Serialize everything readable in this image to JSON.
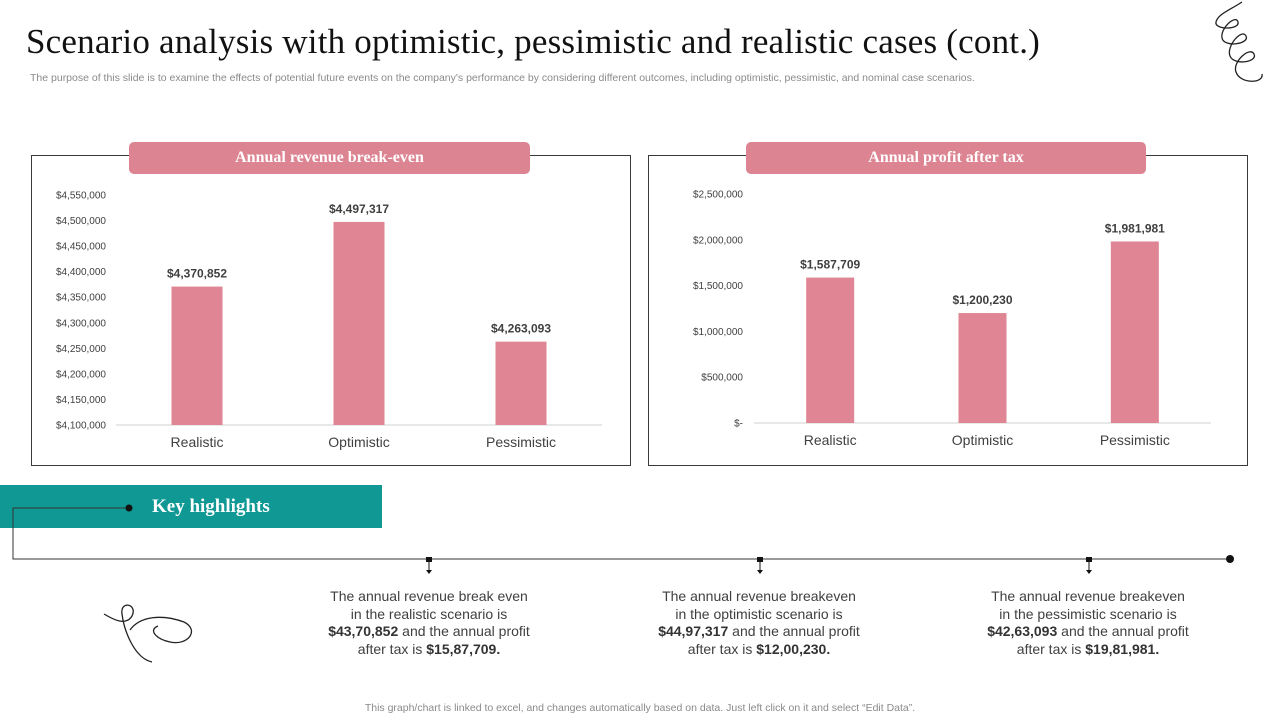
{
  "title": "Scenario analysis with optimistic, pessimistic and realistic cases (cont.)",
  "subtitle": "The purpose of this slide is to examine the effects of potential future events on the company's performance by considering different outcomes, including optimistic, pessimistic, and nominal case scenarios.",
  "colors": {
    "bar": "#df8593",
    "header": "#dd8492",
    "teal": "#0f9894"
  },
  "chart_data": [
    {
      "type": "bar",
      "title": "Annual revenue break-even",
      "categories": [
        "Realistic",
        "Optimistic",
        "Pessimistic"
      ],
      "values": [
        4370852,
        4497317,
        4263093
      ],
      "value_labels": [
        "$4,370,852",
        "$4,497,317",
        "$4,263,093"
      ],
      "ylim": [
        4100000,
        4550000
      ],
      "yticks": [
        4100000,
        4150000,
        4200000,
        4250000,
        4300000,
        4350000,
        4400000,
        4450000,
        4500000,
        4550000
      ],
      "ytick_labels": [
        "$4,100,000",
        "$4,150,000",
        "$4,200,000",
        "$4,250,000",
        "$4,300,000",
        "$4,350,000",
        "$4,400,000",
        "$4,450,000",
        "$4,500,000",
        "$4,550,000"
      ],
      "xlabel": "",
      "ylabel": "",
      "grid": false
    },
    {
      "type": "bar",
      "title": "Annual profit after tax",
      "categories": [
        "Realistic",
        "Optimistic",
        "Pessimistic"
      ],
      "values": [
        1587709,
        1200230,
        1981981
      ],
      "value_labels": [
        "$1,587,709",
        "$1,200,230",
        "$1,981,981"
      ],
      "ylim": [
        0,
        2500000
      ],
      "yticks": [
        0,
        500000,
        1000000,
        1500000,
        2000000,
        2500000
      ],
      "ytick_labels": [
        "$-",
        "$500,000",
        "$1,000,000",
        "$1,500,000",
        "$2,000,000",
        "$2,500,000"
      ],
      "xlabel": "",
      "ylabel": "",
      "grid": false
    }
  ],
  "key_highlights": {
    "label": "Key highlights",
    "items": [
      {
        "line1": "The annual revenue break even",
        "line2": "in the realistic scenario is",
        "revenue": "$43,70,852",
        "mid": " and the annual profit",
        "after": "after tax is ",
        "profit": "$15,87,709."
      },
      {
        "line1": "The annual revenue breakeven",
        "line2": "in the optimistic scenario is",
        "revenue": "$44,97,317",
        "mid": " and the annual profit",
        "after": "after tax is ",
        "profit": "$12,00,230."
      },
      {
        "line1": "The annual revenue breakeven",
        "line2": "in the pessimistic scenario is",
        "revenue": "$42,63,093",
        "mid": " and the annual profit",
        "after": "after tax is ",
        "profit": "$19,81,981."
      }
    ]
  },
  "footer": "This graph/chart is linked to excel,  and changes automatically based on data. Just left click on it and select “Edit Data”."
}
